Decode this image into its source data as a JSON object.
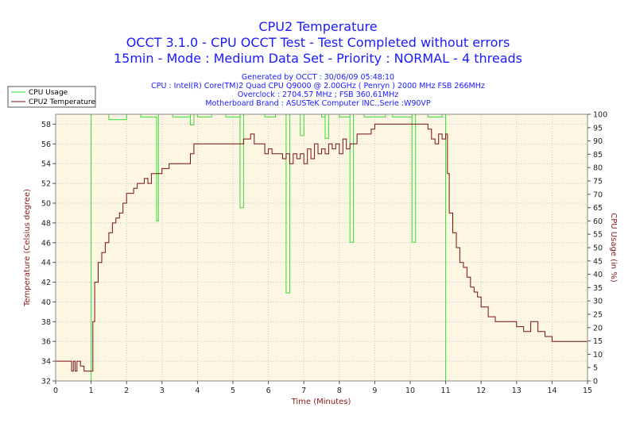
{
  "header": {
    "title": "CPU2 Temperature",
    "line2": "OCCT 3.1.0 - CPU OCCT Test - Test Completed without errors",
    "line3": "15min - Mode : Medium Data Set - Priority : NORMAL - 4 threads",
    "info1": "Generated by OCCT : 30/06/09 05:48:10",
    "info2": "CPU : Intel(R) Core(TM)2 Quad CPU Q9000 @ 2.00GHz ( Penryn ) 2000 MHz FSB 266MHz",
    "info3": "Overclock : 2704.57 MHz ; FSB 360.61MHz",
    "info4": "Motherboard Brand : ASUSTeK Computer INC.,Serie :W90VP"
  },
  "colors": {
    "plot_bg": "#fdf6e3",
    "temperature": "#7a1010",
    "cpu_usage": "#33dd33",
    "axis_label": "#8b1a1a",
    "title": "#1a1aff"
  },
  "chart_data": {
    "type": "line",
    "xlabel": "Time (Minutes)",
    "ylabel_left": "Temperature (Celsius degree)",
    "ylabel_right": "CPU Usage (in %)",
    "xlim": [
      0,
      15
    ],
    "ylim_left": [
      32,
      59
    ],
    "ylim_right": [
      0,
      100
    ],
    "x_ticks": [
      0,
      1,
      2,
      3,
      4,
      5,
      6,
      7,
      8,
      9,
      10,
      11,
      12,
      13,
      14,
      15
    ],
    "y_ticks_left": [
      32,
      34,
      36,
      38,
      40,
      42,
      44,
      46,
      48,
      50,
      52,
      54,
      56,
      58
    ],
    "y_ticks_right": [
      0,
      5,
      10,
      15,
      20,
      25,
      30,
      35,
      40,
      45,
      50,
      55,
      60,
      65,
      70,
      75,
      80,
      85,
      90,
      95,
      100
    ],
    "grid": true,
    "legend_position": "top-left",
    "series": [
      {
        "name": "CPU Usage",
        "axis": "right",
        "x": [
          0,
          1.0,
          1.0,
          1.5,
          2.0,
          2.4,
          2.85,
          2.85,
          2.9,
          3.3,
          3.8,
          3.8,
          3.9,
          4.0,
          4.4,
          4.8,
          5.2,
          5.2,
          5.3,
          5.9,
          6.2,
          6.5,
          6.5,
          6.6,
          6.9,
          6.9,
          7.0,
          7.5,
          7.6,
          7.6,
          7.7,
          8.0,
          8.3,
          8.3,
          8.4,
          8.7,
          9.3,
          9.5,
          10.05,
          10.05,
          10.15,
          10.5,
          10.9,
          11.0,
          11.0,
          15.0
        ],
        "values": [
          0,
          0,
          100,
          98,
          100,
          99,
          99,
          60,
          100,
          99,
          100,
          96,
          100,
          99,
          100,
          99,
          100,
          65,
          100,
          99,
          100,
          99,
          33,
          100,
          100,
          92,
          100,
          99,
          100,
          91,
          100,
          99,
          100,
          52,
          100,
          99,
          100,
          99,
          100,
          52,
          100,
          99,
          100,
          100,
          0,
          0
        ]
      },
      {
        "name": "CPU2 Temperature",
        "axis": "left",
        "x": [
          0,
          0.4,
          0.45,
          0.5,
          0.55,
          0.6,
          0.7,
          0.8,
          1.0,
          1.05,
          1.1,
          1.2,
          1.3,
          1.4,
          1.5,
          1.6,
          1.7,
          1.8,
          1.9,
          2.0,
          2.1,
          2.2,
          2.3,
          2.4,
          2.5,
          2.6,
          2.7,
          2.8,
          3.0,
          3.2,
          3.4,
          3.6,
          3.8,
          3.9,
          4.0,
          4.2,
          4.5,
          4.8,
          5.1,
          5.3,
          5.5,
          5.6,
          5.8,
          5.9,
          6.0,
          6.1,
          6.2,
          6.3,
          6.4,
          6.5,
          6.6,
          6.7,
          6.8,
          6.9,
          7.0,
          7.1,
          7.2,
          7.3,
          7.4,
          7.5,
          7.6,
          7.7,
          7.8,
          7.9,
          8.0,
          8.1,
          8.2,
          8.3,
          8.4,
          8.5,
          8.6,
          8.7,
          8.8,
          8.9,
          9.0,
          9.5,
          10.0,
          10.3,
          10.5,
          10.6,
          10.7,
          10.8,
          10.9,
          11.0,
          11.05,
          11.1,
          11.2,
          11.3,
          11.4,
          11.5,
          11.6,
          11.7,
          11.8,
          11.9,
          12.0,
          12.2,
          12.4,
          12.6,
          12.8,
          13.0,
          13.2,
          13.4,
          13.6,
          13.8,
          14.0,
          14.2,
          14.4,
          14.6,
          15.0
        ],
        "values": [
          34,
          34,
          33,
          34,
          33,
          34,
          33.5,
          33,
          33,
          38,
          42,
          44,
          45,
          46,
          47,
          48,
          48.5,
          49,
          50,
          51,
          51,
          51.5,
          52,
          52,
          52.5,
          52,
          53,
          53,
          53.5,
          54,
          54,
          54,
          55,
          56,
          56,
          56,
          56,
          56,
          56,
          56.5,
          57,
          56,
          56,
          55,
          55.5,
          55,
          55,
          55,
          54.5,
          55,
          54,
          55,
          54.5,
          55,
          54,
          55.5,
          54.5,
          56,
          55,
          55.5,
          55,
          56,
          55.5,
          56,
          55,
          56.5,
          55.5,
          56,
          56,
          57,
          57,
          57,
          57,
          57.5,
          58,
          58,
          58,
          58,
          57.5,
          56.5,
          56,
          57,
          56.5,
          57,
          53,
          49,
          47,
          45.5,
          44,
          43.5,
          42.5,
          41.5,
          41,
          40.5,
          39.5,
          38.5,
          38,
          38,
          38,
          37.5,
          37,
          38,
          37,
          36.5,
          36,
          36,
          36,
          36,
          36
        ]
      }
    ]
  }
}
